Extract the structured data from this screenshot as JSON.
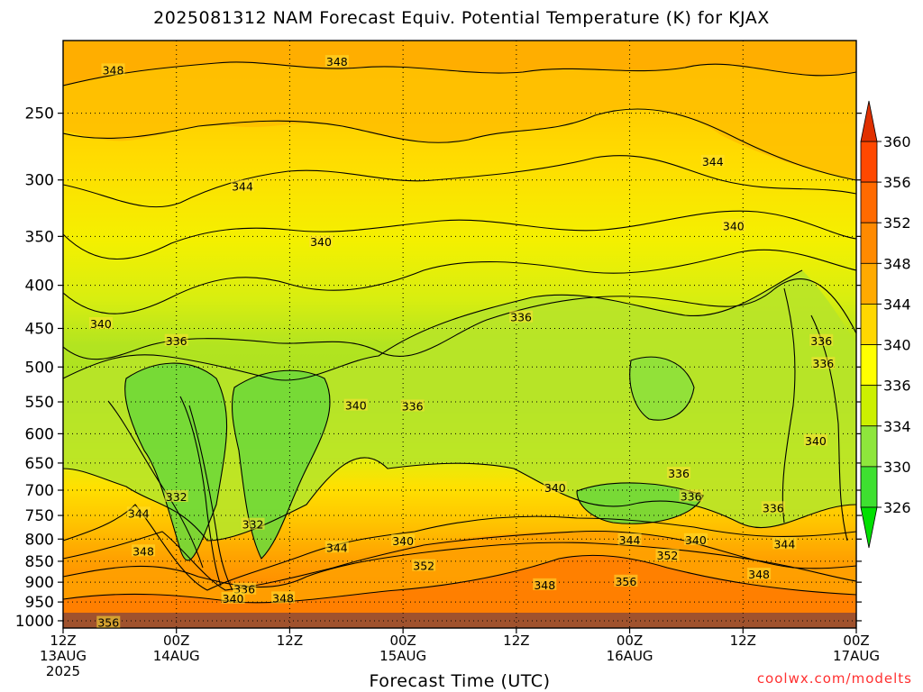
{
  "title": "2025081312 NAM Forecast Equiv. Potential Temperature (K) for KJAX",
  "credit": "coolwx.com/modelts",
  "chart_data": {
    "type": "heatmap",
    "title": "2025081312 NAM Forecast Equiv. Potential Temperature (K) for KJAX",
    "xlabel": "Forecast Time (UTC)",
    "ylabel": "",
    "y_axis_reversed": true,
    "ylim": [
      1020,
      205
    ],
    "y_ticks": [
      250,
      300,
      350,
      400,
      450,
      500,
      550,
      600,
      650,
      700,
      750,
      800,
      850,
      900,
      950,
      1000
    ],
    "x_ticks": [
      {
        "t": 0,
        "lines": [
          "12Z",
          "13AUG",
          "2025"
        ]
      },
      {
        "t": 12,
        "lines": [
          "00Z",
          "14AUG"
        ]
      },
      {
        "t": 24,
        "lines": [
          "12Z"
        ]
      },
      {
        "t": 36,
        "lines": [
          "00Z",
          "15AUG"
        ]
      },
      {
        "t": 48,
        "lines": [
          "12Z"
        ]
      },
      {
        "t": 60,
        "lines": [
          "00Z",
          "16AUG"
        ]
      },
      {
        "t": 72,
        "lines": [
          "12Z"
        ]
      },
      {
        "t": 84,
        "lines": [
          "00Z",
          "17AUG"
        ]
      }
    ],
    "xlim": [
      0,
      84
    ],
    "grid": true,
    "colorbar": {
      "labels": [
        326,
        330,
        334,
        336,
        340,
        344,
        348,
        352,
        356,
        360
      ],
      "colors": [
        "#00e000",
        "#3ee030",
        "#8ee63c",
        "#ccf000",
        "#ffff00",
        "#ffd700",
        "#ffaa00",
        "#ff8a00",
        "#ff6a00",
        "#ff4800",
        "#e03000"
      ]
    },
    "contour_labels": [
      {
        "text": "348",
        "t": 5.3,
        "p": 222
      },
      {
        "text": "348",
        "t": 29.0,
        "p": 217
      },
      {
        "text": "344",
        "t": 68.8,
        "p": 285
      },
      {
        "text": "344",
        "t": 19.0,
        "p": 305
      },
      {
        "text": "340",
        "t": 71.0,
        "p": 340
      },
      {
        "text": "340",
        "t": 27.3,
        "p": 355
      },
      {
        "text": "340",
        "t": 4.0,
        "p": 444
      },
      {
        "text": "336",
        "t": 48.5,
        "p": 436
      },
      {
        "text": "336",
        "t": 12.0,
        "p": 465
      },
      {
        "text": "336",
        "t": 80.3,
        "p": 465
      },
      {
        "text": "336",
        "t": 80.5,
        "p": 495
      },
      {
        "text": "340",
        "t": 31.0,
        "p": 555
      },
      {
        "text": "336",
        "t": 37.0,
        "p": 556
      },
      {
        "text": "340",
        "t": 79.7,
        "p": 611
      },
      {
        "text": "336",
        "t": 65.2,
        "p": 668
      },
      {
        "text": "340",
        "t": 52.1,
        "p": 695
      },
      {
        "text": "332",
        "t": 12.0,
        "p": 712
      },
      {
        "text": "336",
        "t": 66.5,
        "p": 711
      },
      {
        "text": "344",
        "t": 8.0,
        "p": 745
      },
      {
        "text": "336",
        "t": 75.2,
        "p": 734
      },
      {
        "text": "332",
        "t": 20.1,
        "p": 768
      },
      {
        "text": "340",
        "t": 36.0,
        "p": 803
      },
      {
        "text": "344",
        "t": 60.0,
        "p": 801
      },
      {
        "text": "340",
        "t": 67.0,
        "p": 801
      },
      {
        "text": "344",
        "t": 29.0,
        "p": 818
      },
      {
        "text": "344",
        "t": 76.4,
        "p": 810
      },
      {
        "text": "348",
        "t": 8.5,
        "p": 826
      },
      {
        "text": "352",
        "t": 64.0,
        "p": 836
      },
      {
        "text": "352",
        "t": 38.2,
        "p": 860
      },
      {
        "text": "348",
        "t": 73.7,
        "p": 880
      },
      {
        "text": "356",
        "t": 59.6,
        "p": 897
      },
      {
        "text": "348",
        "t": 51.0,
        "p": 906
      },
      {
        "text": "336",
        "t": 19.2,
        "p": 917
      },
      {
        "text": "340",
        "t": 18.0,
        "p": 940
      },
      {
        "text": "348",
        "t": 23.3,
        "p": 939
      },
      {
        "text": "356",
        "t": 4.8,
        "p": 1004
      }
    ]
  }
}
